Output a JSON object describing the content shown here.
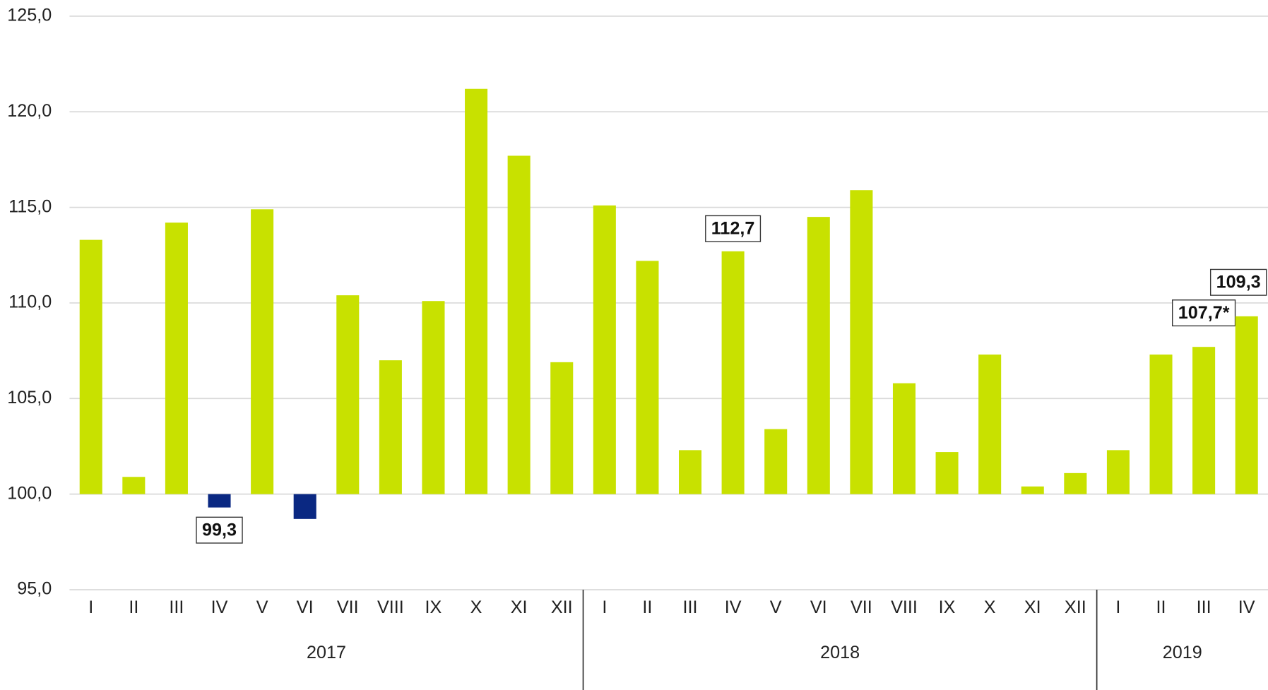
{
  "chart_data": {
    "type": "bar",
    "categories": [
      "I",
      "II",
      "III",
      "IV",
      "V",
      "VI",
      "VII",
      "VIII",
      "IX",
      "X",
      "XI",
      "XII",
      "I",
      "II",
      "III",
      "IV",
      "V",
      "VI",
      "VII",
      "VIII",
      "IX",
      "X",
      "XI",
      "XII",
      "I",
      "II",
      "III",
      "IV"
    ],
    "groups": [
      {
        "label": "2017",
        "count": 12
      },
      {
        "label": "2018",
        "count": 12
      },
      {
        "label": "2019",
        "count": 4
      }
    ],
    "values": [
      113.3,
      100.9,
      114.2,
      99.3,
      114.9,
      98.7,
      110.4,
      107.0,
      110.1,
      121.2,
      117.7,
      106.9,
      115.1,
      112.2,
      102.3,
      112.7,
      103.4,
      114.5,
      115.9,
      105.8,
      102.2,
      107.3,
      100.4,
      101.1,
      102.3,
      107.3,
      107.7,
      109.3
    ],
    "value_labels": [
      null,
      null,
      null,
      "99,3",
      null,
      null,
      null,
      null,
      null,
      null,
      null,
      null,
      null,
      null,
      null,
      "112,7",
      null,
      null,
      null,
      null,
      null,
      null,
      null,
      null,
      null,
      null,
      "107,7*",
      "109,3"
    ],
    "bar_base": 100,
    "color": "#c8e100",
    "below_base_color": "#0a2882",
    "ylim": [
      95,
      125
    ],
    "yticks": [
      {
        "value": 95,
        "label": "95,0"
      },
      {
        "value": 100,
        "label": "100,0"
      },
      {
        "value": 105,
        "label": "105,0"
      },
      {
        "value": 110,
        "label": "110,0"
      },
      {
        "value": 115,
        "label": "115,0"
      },
      {
        "value": 120,
        "label": "120,0"
      },
      {
        "value": 125,
        "label": "125,0"
      }
    ],
    "grid": true
  }
}
